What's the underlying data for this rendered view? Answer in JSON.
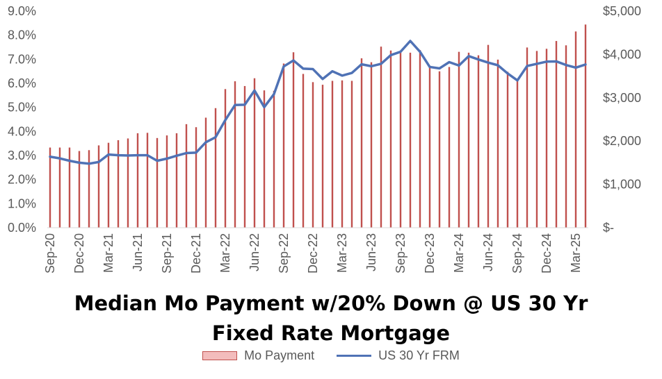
{
  "chart_data": {
    "type": "bar",
    "title_lines": [
      "Median Mo Payment w/20% Down @ US 30 Yr",
      "Fixed Rate Mortgage"
    ],
    "x_tick_labels": [
      "Sep-20",
      "Dec-20",
      "Mar-21",
      "Jun-21",
      "Sep-21",
      "Dec-21",
      "Mar-22",
      "Jun-22",
      "Sep-22",
      "Dec-22",
      "Mar-23",
      "Jun-23",
      "Sep-23",
      "Dec-23",
      "Mar-24",
      "Jun-24",
      "Sep-24",
      "Dec-24",
      "Mar-25"
    ],
    "x": [
      "Sep-20",
      "Oct-20",
      "Nov-20",
      "Dec-20",
      "Jan-21",
      "Feb-21",
      "Mar-21",
      "Apr-21",
      "May-21",
      "Jun-21",
      "Jul-21",
      "Aug-21",
      "Sep-21",
      "Oct-21",
      "Nov-21",
      "Dec-21",
      "Jan-22",
      "Feb-22",
      "Mar-22",
      "Apr-22",
      "May-22",
      "Jun-22",
      "Jul-22",
      "Aug-22",
      "Sep-22",
      "Oct-22",
      "Nov-22",
      "Dec-22",
      "Jan-23",
      "Feb-23",
      "Mar-23",
      "Apr-23",
      "May-23",
      "Jun-23",
      "Jul-23",
      "Aug-23",
      "Sep-23",
      "Oct-23",
      "Nov-23",
      "Dec-23",
      "Jan-24",
      "Feb-24",
      "Mar-24",
      "Apr-24",
      "May-24",
      "Jun-24",
      "Jul-24",
      "Aug-24",
      "Sep-24",
      "Oct-24",
      "Nov-24",
      "Dec-24",
      "Jan-25",
      "Feb-25",
      "Mar-25",
      "Apr-25"
    ],
    "y_left": {
      "min": 0,
      "max": 0.09,
      "ticks": [
        "0.0%",
        "1.0%",
        "2.0%",
        "3.0%",
        "4.0%",
        "5.0%",
        "6.0%",
        "7.0%",
        "8.0%",
        "9.0%"
      ]
    },
    "y_right": {
      "min": 0,
      "max": 5000,
      "ticks": [
        "$-",
        "$1,000",
        "$2,000",
        "$3,000",
        "$4,000",
        "$5,000"
      ]
    },
    "grid": false,
    "legend_position": "bottom",
    "series": [
      {
        "name": "Mo Payment",
        "type": "bar",
        "axis": "right",
        "color": "#c0504d",
        "values": [
          1850,
          1850,
          1850,
          1770,
          1790,
          1900,
          1960,
          2020,
          2060,
          2180,
          2190,
          2070,
          2130,
          2180,
          2390,
          2320,
          2540,
          2760,
          3200,
          3380,
          3270,
          3450,
          3170,
          3160,
          3790,
          4050,
          3550,
          3360,
          3300,
          3390,
          3400,
          3390,
          3910,
          3820,
          4180,
          4090,
          4040,
          4040,
          4100,
          3740,
          3610,
          3710,
          4060,
          4040,
          3980,
          4220,
          3880,
          3600,
          3380,
          4160,
          4080,
          4130,
          4310,
          4210,
          4530,
          4690
        ]
      },
      {
        "name": "US 30 Yr FRM",
        "type": "line",
        "axis": "left",
        "color": "#4f72b5",
        "values": [
          0.0295,
          0.0288,
          0.0278,
          0.027,
          0.0266,
          0.0273,
          0.0304,
          0.0301,
          0.03,
          0.0301,
          0.0301,
          0.0278,
          0.0287,
          0.0299,
          0.031,
          0.0312,
          0.0355,
          0.0376,
          0.0447,
          0.051,
          0.0511,
          0.057,
          0.0501,
          0.0555,
          0.067,
          0.0695,
          0.0661,
          0.0659,
          0.0618,
          0.065,
          0.0632,
          0.0643,
          0.0679,
          0.0671,
          0.0681,
          0.0717,
          0.0731,
          0.0776,
          0.0731,
          0.0668,
          0.0662,
          0.0688,
          0.0674,
          0.0713,
          0.0699,
          0.0686,
          0.0675,
          0.0641,
          0.0612,
          0.0672,
          0.0681,
          0.069,
          0.0691,
          0.0676,
          0.0665,
          0.0678
        ]
      }
    ]
  }
}
